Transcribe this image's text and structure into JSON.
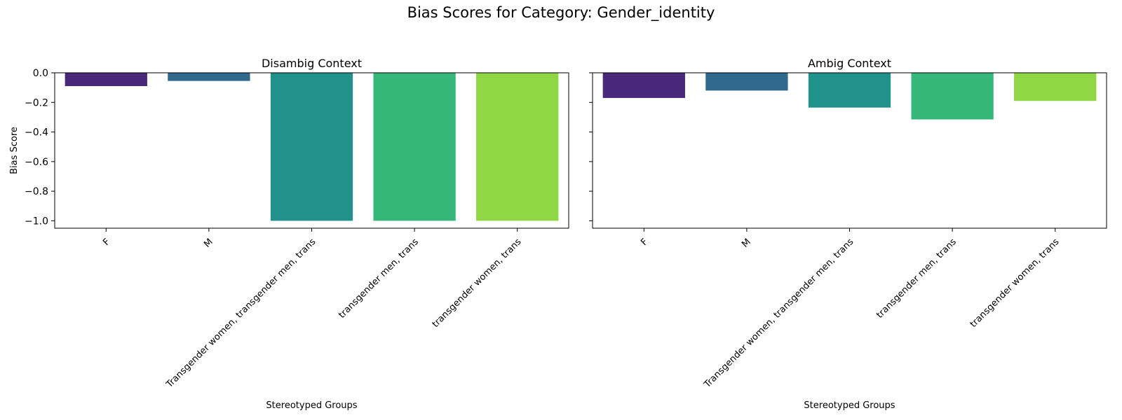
{
  "figure": {
    "suptitle": "Bias Scores for Category: Gender_identity"
  },
  "chart_data": [
    {
      "type": "bar",
      "title": "Disambig Context",
      "xlabel": "Stereotyped Groups",
      "ylabel": "Bias Score",
      "categories": [
        "F",
        "M",
        "Transgender women, transgender men, trans",
        "transgender men, trans",
        "transgender women, trans"
      ],
      "values": [
        -0.09,
        -0.055,
        -1.0,
        -1.0,
        -1.0
      ],
      "colors": [
        "#482878",
        "#31688e",
        "#21918c",
        "#35b779",
        "#8fd744"
      ],
      "ylim": [
        -1.05,
        0.0
      ],
      "yticks": [
        0.0,
        -0.2,
        -0.4,
        -0.6,
        -0.8,
        -1.0
      ],
      "ytick_labels": [
        "0.0",
        "−0.2",
        "−0.4",
        "−0.6",
        "−0.8",
        "−1.0"
      ],
      "grid": false,
      "legend": "none"
    },
    {
      "type": "bar",
      "title": "Ambig Context",
      "xlabel": "Stereotyped Groups",
      "ylabel": "",
      "categories": [
        "F",
        "M",
        "Transgender women, transgender men, trans",
        "transgender men, trans",
        "transgender women, trans"
      ],
      "values": [
        -0.17,
        -0.12,
        -0.235,
        -0.315,
        -0.19
      ],
      "colors": [
        "#482878",
        "#31688e",
        "#21918c",
        "#35b779",
        "#8fd744"
      ],
      "ylim": [
        -1.05,
        0.0
      ],
      "yticks": [
        0.0,
        -0.2,
        -0.4,
        -0.6,
        -0.8,
        -1.0
      ],
      "ytick_labels": [],
      "grid": false,
      "legend": "none"
    }
  ]
}
